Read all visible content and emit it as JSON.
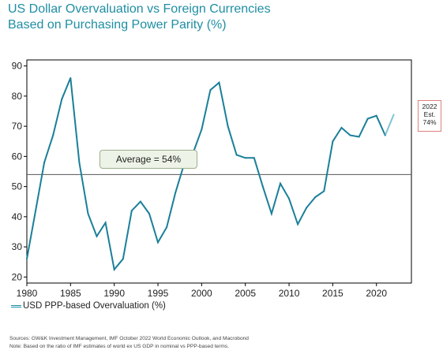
{
  "title_line1": "US Dollar Overvaluation vs Foreign Currencies",
  "title_line2": "Based on Purchasing Power Parity (%)",
  "legend_label": "USD PPP-based Overvaluation (%)",
  "average_label": "Average = 54%",
  "estimate": {
    "line1": "2022",
    "line2": "Est.",
    "line3": "74%"
  },
  "footnote_line1": "Sources: GW&K Investment Management, IMF October 2022 World Economic Outlook, and Macrobond",
  "footnote_line2": "Note: Based on the ratio of IMF estimates of world ex US GDP in nominal vs PPP-based terms.",
  "colors": {
    "title": "#1f8ea3",
    "series": "#1a7f99",
    "estimate": "#7fc4d4",
    "average_line": "#555555",
    "estimate_border": "#e08080"
  },
  "chart_data": {
    "type": "line",
    "title": "US Dollar Overvaluation vs Foreign Currencies Based on Purchasing Power Parity (%)",
    "xlim": [
      1980,
      2024
    ],
    "ylim": [
      18,
      92
    ],
    "x_ticks": [
      1980,
      1985,
      1990,
      1995,
      2000,
      2005,
      2010,
      2015,
      2020
    ],
    "y_ticks": [
      20,
      30,
      40,
      50,
      60,
      70,
      80,
      90
    ],
    "grid": false,
    "legend_position": "bottom-left",
    "average": 54,
    "series": [
      {
        "name": "USD PPP-based Overvaluation (%)",
        "x": [
          1980,
          1981,
          1982,
          1983,
          1984,
          1985,
          1986,
          1987,
          1988,
          1989,
          1990,
          1991,
          1992,
          1993,
          1994,
          1995,
          1996,
          1997,
          1998,
          1999,
          2000,
          2001,
          2002,
          2003,
          2004,
          2005,
          2006,
          2007,
          2008,
          2009,
          2010,
          2011,
          2012,
          2013,
          2014,
          2015,
          2016,
          2017,
          2018,
          2019,
          2020,
          2021
        ],
        "y": [
          26,
          42,
          58,
          67,
          79,
          86,
          58,
          41,
          33.5,
          38,
          22.5,
          26,
          42,
          45,
          41,
          31.5,
          36.5,
          48,
          57.5,
          61,
          69,
          82,
          84.5,
          70,
          60.5,
          59.5,
          59.5,
          50,
          41,
          51,
          46,
          37.5,
          43,
          46.5,
          48.5,
          65,
          69.5,
          67,
          66.5,
          72.5,
          73.5,
          67
        ]
      },
      {
        "name": "2022 Est.",
        "x": [
          2021,
          2022
        ],
        "y": [
          67,
          74
        ]
      }
    ]
  }
}
